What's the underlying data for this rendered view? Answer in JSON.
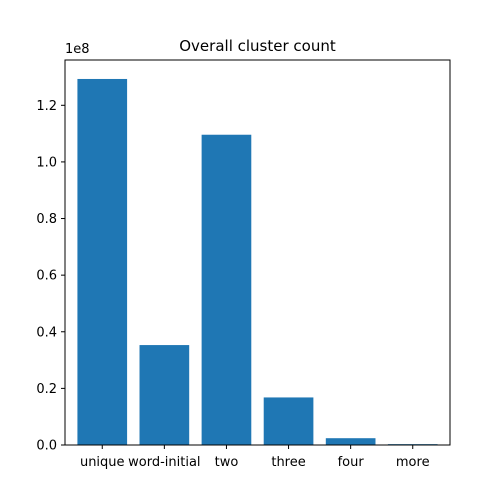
{
  "chart_data": {
    "type": "bar",
    "title": "Overall cluster count",
    "xlabel": "",
    "ylabel": "",
    "categories": [
      "unique",
      "word-initial",
      "two",
      "three",
      "four",
      "more"
    ],
    "values": [
      129300000,
      35300000,
      109600000,
      16800000,
      2400000,
      300000
    ],
    "ylim": [
      0,
      136000000
    ],
    "yticks": [
      0,
      20000000,
      40000000,
      60000000,
      80000000,
      100000000,
      120000000
    ],
    "ytick_labels": [
      "0.0",
      "0.2",
      "0.4",
      "0.6",
      "0.8",
      "1.0",
      "1.2"
    ],
    "y_offset_label": "1e8",
    "bar_color": "#1f77b4",
    "grid": false,
    "legend": "none"
  }
}
